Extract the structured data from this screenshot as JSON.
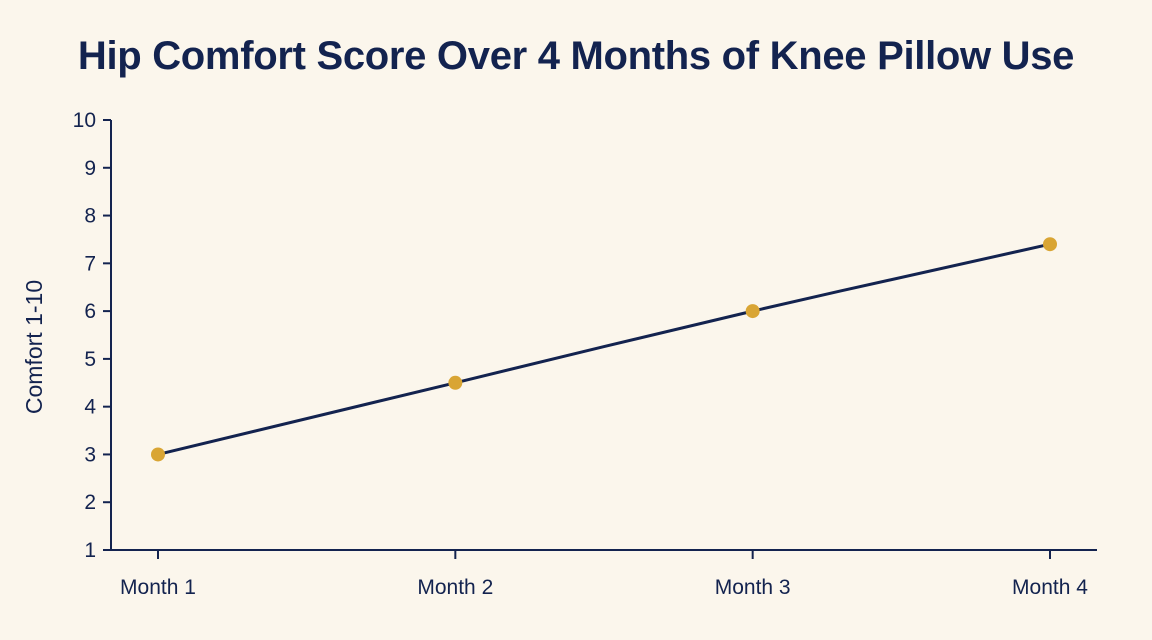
{
  "chart_data": {
    "type": "line",
    "title": "Hip Comfort Score Over 4 Months of Knee Pillow Use",
    "xlabel": "",
    "ylabel": "Comfort 1-10",
    "categories": [
      "Month 1",
      "Month 2",
      "Month 3",
      "Month 4"
    ],
    "series": [
      {
        "values": [
          3.0,
          4.5,
          6.0,
          7.4
        ]
      }
    ],
    "ylim": [
      1,
      10
    ],
    "yticks": [
      1,
      2,
      3,
      4,
      5,
      6,
      7,
      8,
      9,
      10
    ],
    "grid": false,
    "legend": "none",
    "colors": {
      "background": "#fbf6ec",
      "line": "#13234f",
      "marker": "#d9a534",
      "text": "#13234f"
    }
  }
}
